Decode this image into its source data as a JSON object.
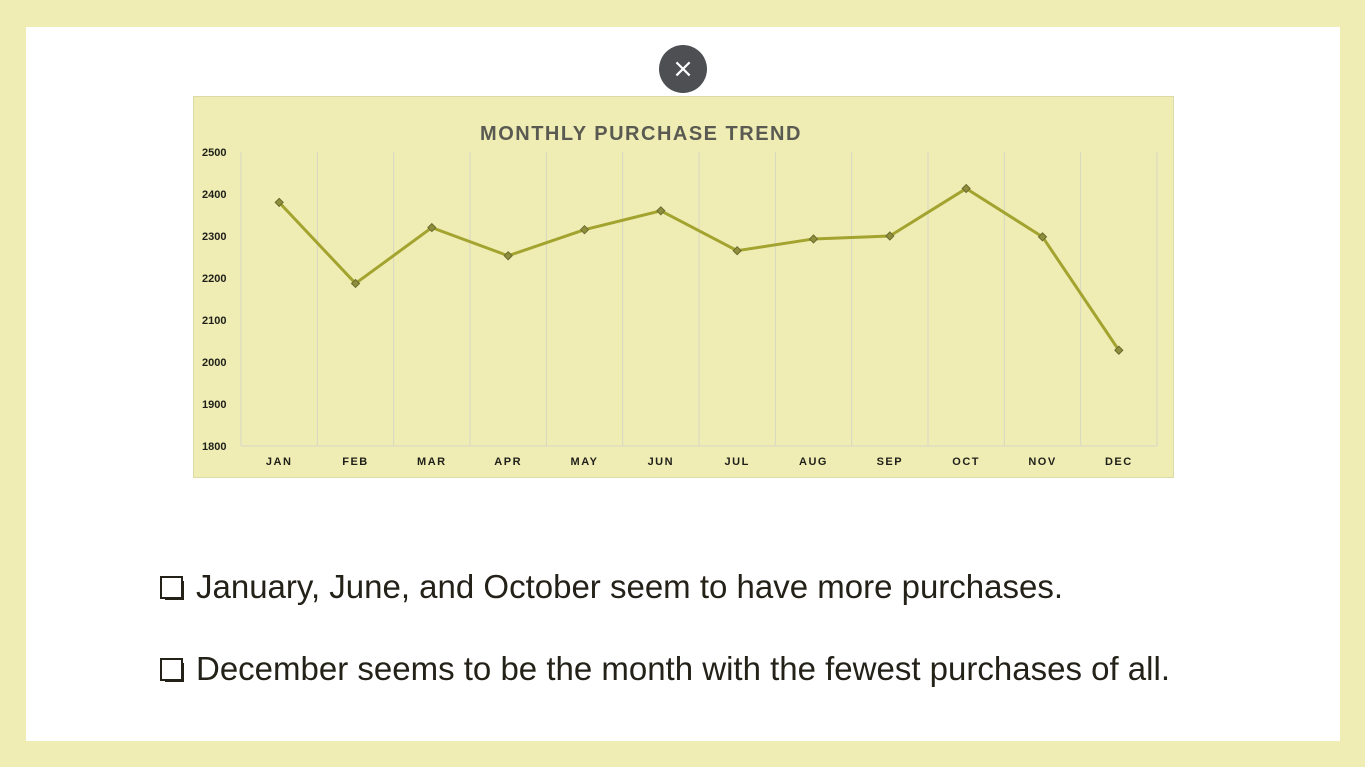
{
  "close_button": {
    "icon": "close-icon",
    "glyph": "×"
  },
  "bullets": [
    {
      "icon": "checkbox-icon",
      "text": "January, June, and October seem to have more purchases."
    },
    {
      "icon": "checkbox-icon",
      "text": "December seems to be the month with the fewest purchases of all."
    }
  ],
  "colors": {
    "background": "#efedb3",
    "line": "#a3a330",
    "marker": "#8e8e3c",
    "grid": "#d7d6c4"
  },
  "chart_data": {
    "type": "line",
    "title": "MONTHLY PURCHASE TREND",
    "xlabel": "",
    "ylabel": "",
    "categories": [
      "JAN",
      "FEB",
      "MAR",
      "APR",
      "MAY",
      "JUN",
      "JUL",
      "AUG",
      "SEP",
      "OCT",
      "NOV",
      "DEC"
    ],
    "series": [
      {
        "values": [
          2380,
          2187,
          2320,
          2253,
          2315,
          2360,
          2265,
          2293,
          2300,
          2413,
          2298,
          2028
        ]
      }
    ],
    "ylim": [
      1800,
      2500
    ],
    "yticks": [
      2500,
      2400,
      2300,
      2200,
      2100,
      2000,
      1900,
      1800
    ],
    "grid": "vertical",
    "legend": "none"
  }
}
